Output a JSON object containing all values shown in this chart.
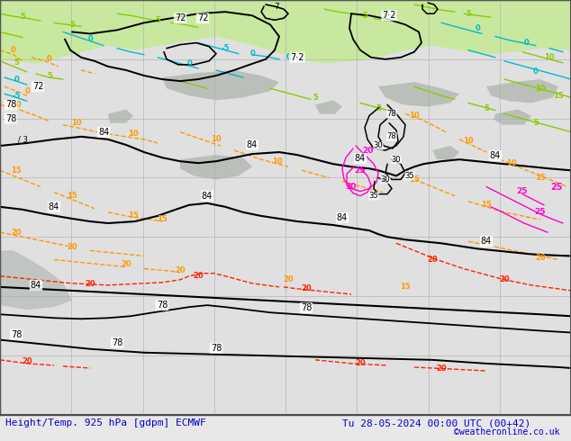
{
  "title_left": "Height/Temp. 925 hPa [gdpm] ECMWF",
  "title_right": "Tu 28-05-2024 00:00 UTC (00+42)",
  "credit": "©weatheronline.co.uk",
  "title_color": "#0000cc",
  "title_fontsize": 8.0,
  "credit_color": "#0000cc",
  "credit_fontsize": 7.0,
  "bg_color": "#e8e8e8",
  "land_green": "#c8e8a0",
  "land_grey": "#b8b8b8",
  "sea_color": "#e0e0e0",
  "grid_color": "#aaaaaa",
  "black": "#000000",
  "orange": "#ff9900",
  "red": "#ff2200",
  "cyan": "#00bbcc",
  "green": "#88cc00",
  "magenta": "#ff00cc",
  "pink": "#ff55aa"
}
